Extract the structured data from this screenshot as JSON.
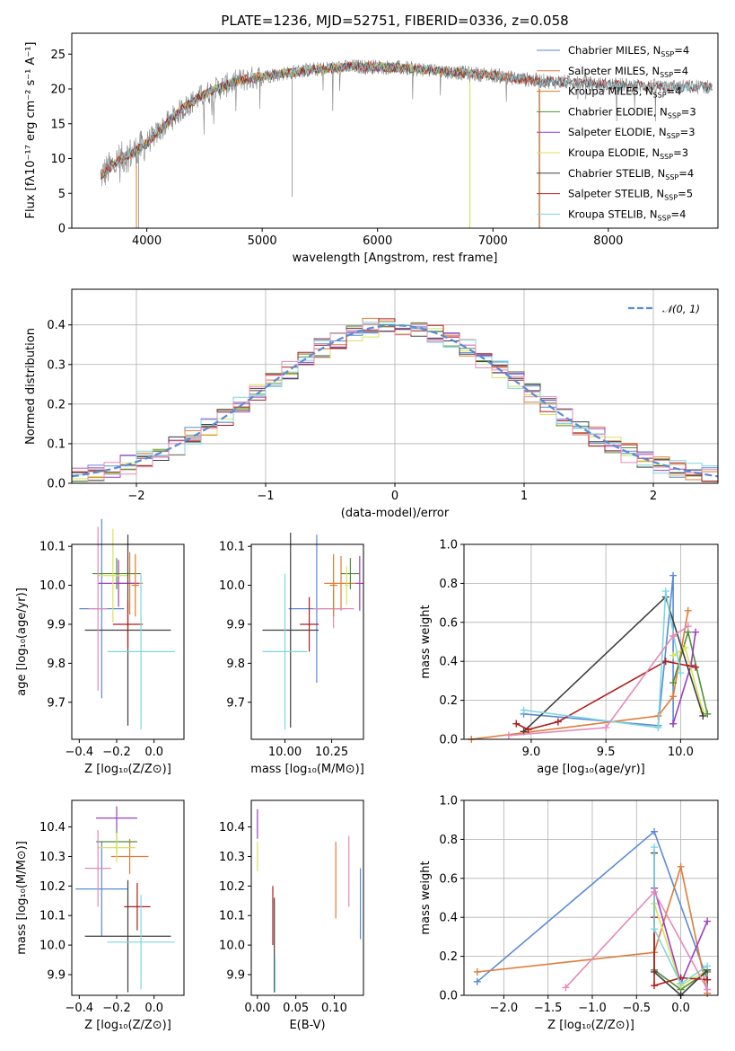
{
  "figure": {
    "title": "PLATE=1236, MJD=52751, FIBERID=0336, z=0.058"
  },
  "colors": {
    "chabrier_miles": "#5a8bd6",
    "salpeter_miles": "#e07b39",
    "kroupa_miles": "#e07b1f",
    "chabrier_elodie": "#4f8f3c",
    "salpeter_elodie": "#9b3fbf",
    "kroupa_elodie": "#d8e35a",
    "chabrier_stelib": "#404040",
    "salpeter_stelib": "#b01c1c",
    "kroupa_stelib": "#7fd6de",
    "pink": "#e38bb9",
    "gaussian": "#5a8bd6"
  },
  "chart_data": [
    {
      "type": "line",
      "id": "spectrum",
      "title": "PLATE=1236, MJD=52751, FIBERID=0336, z=0.058",
      "xlabel": "wavelength [Angstrom, rest frame]",
      "ylabel": "Flux [fλ10⁻¹⁷ erg cm⁻² s⁻¹ A⁻¹]",
      "xlim": [
        3350,
        8950
      ],
      "ylim": [
        0,
        28
      ],
      "xticks": [
        4000,
        5000,
        6000,
        7000,
        8000
      ],
      "yticks": [
        0,
        5,
        10,
        15,
        20,
        25
      ],
      "legend_position": "right",
      "continuum": {
        "x": [
          3600,
          3700,
          3800,
          3900,
          4000,
          4100,
          4200,
          4300,
          4400,
          4500,
          4600,
          4700,
          4800,
          4900,
          5000,
          5200,
          5400,
          5600,
          5800,
          6000,
          6200,
          6400,
          6600,
          6800,
          7000,
          7200,
          7400,
          7600,
          7800,
          8000,
          8200,
          8400,
          8600,
          8800
        ],
        "y": [
          7.5,
          9.0,
          10.2,
          11.0,
          12.2,
          13.8,
          15.5,
          17.0,
          18.2,
          19.2,
          20.0,
          20.6,
          21.2,
          21.5,
          21.8,
          22.3,
          22.7,
          23.0,
          23.2,
          23.2,
          23.0,
          22.8,
          22.5,
          22.2,
          22.0,
          21.5,
          21.2,
          21.0,
          20.8,
          20.6,
          20.5,
          20.4,
          20.3,
          20.3
        ]
      },
      "series": [
        {
          "name": "Chabrier MILES, N_SSP=4",
          "color_key": "chabrier_miles",
          "xmax": 7400
        },
        {
          "name": "Salpeter MILES, N_SSP=4",
          "color_key": "salpeter_miles",
          "xmax": 7400
        },
        {
          "name": "Kroupa MILES, N_SSP=4",
          "color_key": "kroupa_miles",
          "xmax": 7400
        },
        {
          "name": "Chabrier ELODIE, N_SSP=3",
          "color_key": "chabrier_elodie",
          "xmax": 6800
        },
        {
          "name": "Salpeter ELODIE, N_SSP=3",
          "color_key": "salpeter_elodie",
          "xmax": 6800
        },
        {
          "name": "Kroupa ELODIE, N_SSP=3",
          "color_key": "kroupa_elodie",
          "xmax": 6800
        },
        {
          "name": "Chabrier STELIB, N_SSP=4",
          "color_key": "chabrier_stelib",
          "xmax": 8900
        },
        {
          "name": "Salpeter STELIB, N_SSP=5",
          "color_key": "salpeter_stelib",
          "xmax": 8900
        },
        {
          "name": "Kroupa STELIB, N_SSP=4",
          "color_key": "kroupa_stelib",
          "xmax": 8900
        }
      ]
    },
    {
      "type": "bar",
      "id": "residuals",
      "xlabel": "(data-model)/error",
      "ylabel": "Normed distribution",
      "xlim": [
        -2.5,
        2.5
      ],
      "ylim": [
        0,
        0.49
      ],
      "xticks": [
        -2,
        -1,
        0,
        1,
        2
      ],
      "xtick_labels": [
        "−2",
        "−1",
        "0",
        "1",
        "2"
      ],
      "yticks": [
        0.0,
        0.1,
        0.2,
        0.3,
        0.4
      ],
      "ytick_labels": [
        "0.0",
        "0.1",
        "0.2",
        "0.3",
        "0.4"
      ],
      "grid": true,
      "legend_position": "top-right",
      "gaussian": {
        "label": "𝒩(0, 1)",
        "mu": 0,
        "sigma": 1
      },
      "bin_width": 0.125
    },
    {
      "type": "scatter",
      "id": "age_vs_z",
      "xlabel": "Z [log₁₀(Z/Z⊙)]",
      "ylabel": "age  [log₁₀(age/yr)]",
      "xlim": [
        -0.44,
        0.16
      ],
      "ylim": [
        9.605,
        10.105
      ],
      "xticks": [
        -0.4,
        -0.2,
        0.0
      ],
      "xtick_labels": [
        "−0.4",
        "−0.2",
        "0.0"
      ],
      "yticks": [
        9.7,
        9.8,
        9.9,
        10.0,
        10.1
      ],
      "ytick_labels": [
        "9.7",
        "9.8",
        "9.9",
        "10.0",
        "10.1"
      ],
      "points": [
        {
          "x": -0.28,
          "xerr": 0.12,
          "y": 9.94,
          "yerr": 0.23,
          "c": "chabrier_miles"
        },
        {
          "x": -0.13,
          "xerr": 0.07,
          "y": 10.005,
          "yerr": 0.08,
          "c": "salpeter_miles"
        },
        {
          "x": -0.2,
          "xerr": 0.13,
          "y": 10.03,
          "yerr": 0.04,
          "c": "chabrier_elodie"
        },
        {
          "x": -0.19,
          "xerr": 0.11,
          "y": 10.005,
          "yerr": 0.06,
          "c": "salpeter_elodie"
        },
        {
          "x": -0.22,
          "xerr": 0.08,
          "y": 10.025,
          "yerr": 0.12,
          "c": "kroupa_elodie"
        },
        {
          "x": -0.14,
          "xerr": 0.23,
          "y": 9.885,
          "yerr": 0.245,
          "c": "chabrier_stelib"
        },
        {
          "x": -0.14,
          "xerr": 0.08,
          "y": 9.9,
          "yerr": 0.06,
          "c": "salpeter_stelib"
        },
        {
          "x": -0.07,
          "xerr": 0.18,
          "y": 9.83,
          "yerr": 0.2,
          "c": "kroupa_stelib"
        },
        {
          "x": -0.3,
          "xerr": 0.05,
          "y": 9.94,
          "yerr": 0.21,
          "c": "pink"
        },
        {
          "x": -0.1,
          "xerr": 0.02,
          "y": 10.0,
          "yerr": 0.08,
          "c": "kroupa_miles"
        }
      ]
    },
    {
      "type": "scatter",
      "id": "age_vs_mass",
      "xlabel": "mass [log₁₀(M/M⊙)]",
      "ylabel": "",
      "xlim": [
        9.82,
        10.42
      ],
      "ylim": [
        9.605,
        10.105
      ],
      "xticks": [
        10.0,
        10.25
      ],
      "xtick_labels": [
        "10.00",
        "10.25"
      ],
      "yticks": [
        9.7,
        9.8,
        9.9,
        10.0,
        10.1
      ],
      "ytick_labels": [
        "9.7",
        "9.8",
        "9.9",
        "10.0",
        "10.1"
      ],
      "points": [
        {
          "x": 10.17,
          "xerr": 0.15,
          "y": 9.94,
          "yerr": 0.19,
          "c": "chabrier_miles"
        },
        {
          "x": 10.3,
          "xerr": 0.09,
          "y": 10.005,
          "yerr": 0.07,
          "c": "salpeter_miles"
        },
        {
          "x": 10.35,
          "xerr": 0.05,
          "y": 10.03,
          "yerr": 0.04,
          "c": "chabrier_elodie"
        },
        {
          "x": 10.4,
          "xerr": 0.02,
          "y": 10.005,
          "yerr": 0.07,
          "c": "salpeter_elodie"
        },
        {
          "x": 10.33,
          "xerr": 0.01,
          "y": 10.0,
          "yerr": 0.05,
          "c": "kroupa_elodie"
        },
        {
          "x": 10.03,
          "xerr": 0.15,
          "y": 9.885,
          "yerr": 0.25,
          "c": "chabrier_stelib"
        },
        {
          "x": 10.13,
          "xerr": 0.05,
          "y": 9.9,
          "yerr": 0.07,
          "c": "salpeter_stelib"
        },
        {
          "x": 10.0,
          "xerr": 0.12,
          "y": 9.83,
          "yerr": 0.2,
          "c": "kroupa_stelib"
        },
        {
          "x": 10.26,
          "xerr": 0.11,
          "y": 9.94,
          "yerr": 0.05,
          "c": "pink"
        },
        {
          "x": 10.26,
          "xerr": 0.02,
          "y": 10.0,
          "yerr": 0.08,
          "c": "kroupa_miles"
        }
      ]
    },
    {
      "type": "line",
      "id": "weight_vs_age",
      "xlabel": "age  [log₁₀(age/yr)]",
      "ylabel": "mass weight",
      "xlim": [
        8.55,
        10.25
      ],
      "ylim": [
        0,
        1.0
      ],
      "xticks": [
        9.0,
        9.5,
        10.0
      ],
      "xtick_labels": [
        "9.0",
        "9.5",
        "10.0"
      ],
      "yticks": [
        0.0,
        0.2,
        0.4,
        0.6,
        0.8,
        1.0
      ],
      "ytick_labels": [
        "0.0",
        "0.2",
        "0.4",
        "0.6",
        "0.8",
        "1.0"
      ],
      "grid": true,
      "series": [
        {
          "c": "chabrier_miles",
          "x": [
            8.95,
            9.85,
            9.95,
            9.95
          ],
          "y": [
            0.13,
            0.07,
            0.84,
            0.08
          ]
        },
        {
          "c": "salpeter_miles",
          "x": [
            8.6,
            9.85,
            9.95,
            10.05
          ],
          "y": [
            0.0,
            0.12,
            0.22,
            0.66
          ]
        },
        {
          "c": "chabrier_elodie",
          "x": [
            9.95,
            10.05,
            10.18
          ],
          "y": [
            0.29,
            0.55,
            0.13
          ]
        },
        {
          "c": "salpeter_elodie",
          "x": [
            9.95,
            10.07,
            10.1
          ],
          "y": [
            0.08,
            0.38,
            0.55
          ]
        },
        {
          "c": "kroupa_elodie",
          "x": [
            9.95,
            10.03,
            10.15
          ],
          "y": [
            0.43,
            0.47,
            0.14
          ]
        },
        {
          "c": "chabrier_stelib",
          "x": [
            8.95,
            9.9,
            10.15
          ],
          "y": [
            0.04,
            0.73,
            0.12
          ]
        },
        {
          "c": "salpeter_stelib",
          "x": [
            8.9,
            8.98,
            9.18,
            9.9,
            10.1
          ],
          "y": [
            0.08,
            0.05,
            0.09,
            0.4,
            0.37
          ]
        },
        {
          "c": "kroupa_stelib",
          "x": [
            8.95,
            9.85,
            9.9,
            10.0
          ],
          "y": [
            0.15,
            0.06,
            0.76,
            0.34
          ]
        },
        {
          "c": "pink",
          "x": [
            8.85,
            9.5,
            9.95,
            10.05
          ],
          "y": [
            0.02,
            0.06,
            0.53,
            0.58
          ]
        }
      ]
    },
    {
      "type": "scatter",
      "id": "mass_vs_z",
      "xlabel": "Z [log₁₀(Z/Z⊙)]",
      "ylabel": "mass [log₁₀(M/M⊙)]",
      "xlim": [
        -0.44,
        0.16
      ],
      "ylim": [
        9.83,
        10.49
      ],
      "xticks": [
        -0.4,
        -0.2,
        0.0
      ],
      "xtick_labels": [
        "−0.4",
        "−0.2",
        "0.0"
      ],
      "yticks": [
        9.9,
        10.0,
        10.1,
        10.2,
        10.3,
        10.4
      ],
      "ytick_labels": [
        "9.9",
        "10.0",
        "10.1",
        "10.2",
        "10.3",
        "10.4"
      ],
      "points": [
        {
          "x": -0.28,
          "xerr": 0.14,
          "y": 10.19,
          "yerr": 0.16,
          "c": "chabrier_miles"
        },
        {
          "x": -0.13,
          "xerr": 0.1,
          "y": 10.3,
          "yerr": 0.06,
          "c": "salpeter_miles"
        },
        {
          "x": -0.2,
          "xerr": 0.11,
          "y": 10.35,
          "yerr": 0.04,
          "c": "chabrier_elodie"
        },
        {
          "x": -0.2,
          "xerr": 0.11,
          "y": 10.43,
          "yerr": 0.04,
          "c": "salpeter_elodie"
        },
        {
          "x": -0.2,
          "xerr": 0.1,
          "y": 10.33,
          "yerr": 0.05,
          "c": "kroupa_elodie"
        },
        {
          "x": -0.14,
          "xerr": 0.23,
          "y": 10.03,
          "yerr": 0.19,
          "c": "chabrier_stelib"
        },
        {
          "x": -0.09,
          "xerr": 0.07,
          "y": 10.13,
          "yerr": 0.08,
          "c": "salpeter_stelib"
        },
        {
          "x": -0.07,
          "xerr": 0.18,
          "y": 10.01,
          "yerr": 0.16,
          "c": "kroupa_stelib"
        },
        {
          "x": -0.3,
          "xerr": 0.07,
          "y": 10.26,
          "yerr": 0.13,
          "c": "pink"
        }
      ]
    },
    {
      "type": "scatter",
      "id": "mass_vs_ebv",
      "xlabel": "E(B-V)",
      "ylabel": "",
      "xlim": [
        -0.008,
        0.138
      ],
      "ylim": [
        9.83,
        10.49
      ],
      "xticks": [
        0.0,
        0.05,
        0.1
      ],
      "xtick_labels": [
        "0.00",
        "0.05",
        "0.10"
      ],
      "yticks": [
        9.9,
        10.0,
        10.1,
        10.2,
        10.3,
        10.4
      ],
      "ytick_labels": [
        "9.9",
        "10.0",
        "10.1",
        "10.2",
        "10.3",
        "10.4"
      ],
      "points": [
        {
          "x": 0.134,
          "y": 10.14,
          "yerr": 0.12,
          "c": "chabrier_miles"
        },
        {
          "x": 0.102,
          "y": 10.22,
          "yerr": 0.13,
          "c": "salpeter_miles"
        },
        {
          "x": 0.0,
          "y": 10.41,
          "yerr": 0.05,
          "c": "salpeter_elodie"
        },
        {
          "x": 0.0,
          "y": 10.3,
          "yerr": 0.05,
          "c": "kroupa_elodie"
        },
        {
          "x": 0.022,
          "y": 10.0,
          "yerr": 0.16,
          "c": "chabrier_stelib"
        },
        {
          "x": 0.02,
          "y": 10.1,
          "yerr": 0.1,
          "c": "salpeter_stelib"
        },
        {
          "x": 0.023,
          "y": 9.9,
          "yerr": 0.06,
          "c": "kroupa_stelib"
        },
        {
          "x": 0.119,
          "y": 10.25,
          "yerr": 0.12,
          "c": "pink"
        }
      ]
    },
    {
      "type": "line",
      "id": "weight_vs_z",
      "xlabel": "Z [log₁₀(Z/Z⊙)]",
      "ylabel": "mass weight",
      "xlim": [
        -2.45,
        0.42
      ],
      "ylim": [
        0,
        1.0
      ],
      "xticks": [
        -2.0,
        -1.5,
        -1.0,
        -0.5,
        0.0
      ],
      "xtick_labels": [
        "−2.0",
        "−1.5",
        "−1.0",
        "−0.5",
        "0.0"
      ],
      "yticks": [
        0.0,
        0.2,
        0.4,
        0.6,
        0.8,
        1.0
      ],
      "ytick_labels": [
        "0.0",
        "0.2",
        "0.4",
        "0.6",
        "0.8",
        "1.0"
      ],
      "grid": true,
      "series": [
        {
          "c": "chabrier_miles",
          "x": [
            -2.3,
            -0.3,
            0.3,
            0.3
          ],
          "y": [
            0.07,
            0.84,
            0.08,
            0.01
          ]
        },
        {
          "c": "salpeter_miles",
          "x": [
            -2.3,
            -0.3,
            0.0,
            0.3
          ],
          "y": [
            0.12,
            0.22,
            0.66,
            0.01
          ]
        },
        {
          "c": "chabrier_elodie",
          "x": [
            -0.3,
            0.0,
            0.3
          ],
          "y": [
            0.13,
            0.03,
            0.12
          ]
        },
        {
          "c": "salpeter_elodie",
          "x": [
            -0.3,
            0.0,
            0.3
          ],
          "y": [
            0.55,
            0.06,
            0.38
          ]
        },
        {
          "c": "kroupa_elodie",
          "x": [
            -0.3,
            0.0,
            0.3
          ],
          "y": [
            0.47,
            0.05,
            0.13
          ]
        },
        {
          "c": "chabrier_stelib",
          "x": [
            -0.3,
            -0.3,
            0.0,
            0.3
          ],
          "y": [
            0.73,
            0.12,
            0.0,
            0.13
          ]
        },
        {
          "c": "salpeter_stelib",
          "x": [
            -0.3,
            -0.3,
            0.0,
            0.3
          ],
          "y": [
            0.4,
            0.05,
            0.09,
            0.08
          ]
        },
        {
          "c": "kroupa_stelib",
          "x": [
            -0.3,
            -0.3,
            0.0,
            0.3
          ],
          "y": [
            0.76,
            0.34,
            0.06,
            0.15
          ]
        },
        {
          "c": "pink",
          "x": [
            -1.3,
            -0.3,
            0.3
          ],
          "y": [
            0.04,
            0.53,
            0.03
          ]
        }
      ]
    }
  ]
}
